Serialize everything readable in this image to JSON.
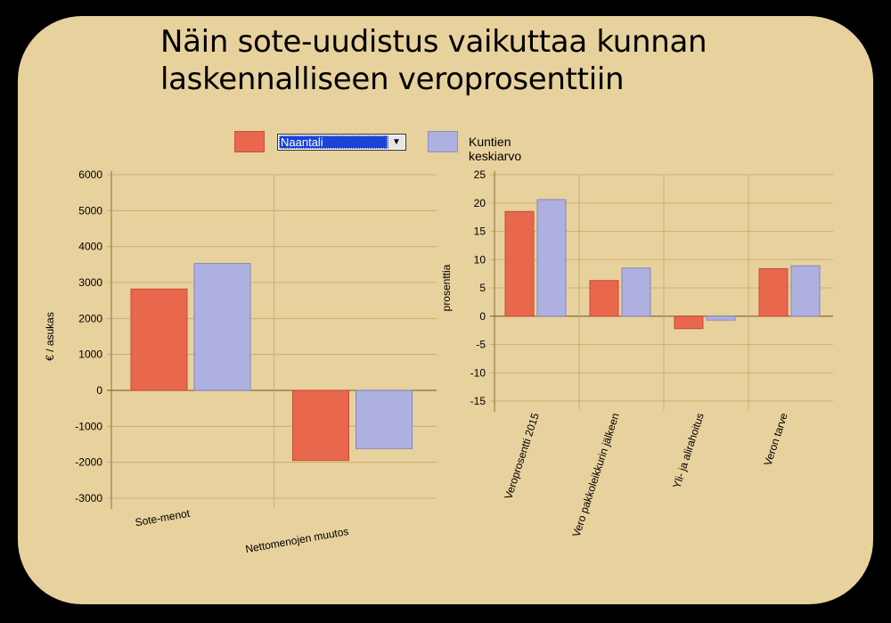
{
  "title": {
    "line1": "Näin sote-uudistus vaikuttaa kunnan",
    "line2": "laskennalliseen veroprosenttiin"
  },
  "legend": {
    "municipality_select_value": "Naantali",
    "average_label": "Kuntien keskiarvo",
    "municipality_color": "#e8674d",
    "average_color": "#aeb0e0"
  },
  "chart_data": [
    {
      "type": "bar",
      "ylabel": "€ / asukas",
      "ylim": [
        -3000,
        6000
      ],
      "yticks": [
        6000,
        5000,
        4000,
        3000,
        2000,
        1000,
        0,
        -1000,
        -2000,
        -3000
      ],
      "categories": [
        "Sote-menot",
        "Nettomenojen muutos"
      ],
      "series": [
        {
          "name": "Naantali",
          "color": "#e8674d",
          "values": [
            2820,
            -1950
          ]
        },
        {
          "name": "Kuntien keskiarvo",
          "color": "#aeb0e0",
          "values": [
            3530,
            -1620
          ]
        }
      ],
      "grid": true
    },
    {
      "type": "bar",
      "ylabel": "prosenttia",
      "ylim": [
        -15,
        25
      ],
      "yticks": [
        25,
        20,
        15,
        10,
        5,
        0,
        -5,
        -10,
        -15
      ],
      "categories": [
        "Veroprosentti 2015",
        "Vero pakkoleikkurin jälkeen",
        "Yli- ja alirahoitus",
        "Veron tarve"
      ],
      "series": [
        {
          "name": "Naantali",
          "color": "#e8674d",
          "values": [
            18.5,
            6.3,
            -2.2,
            8.4
          ]
        },
        {
          "name": "Kuntien keskiarvo",
          "color": "#aeb0e0",
          "values": [
            20.6,
            8.5,
            -0.7,
            8.9
          ]
        }
      ],
      "grid": true
    }
  ]
}
